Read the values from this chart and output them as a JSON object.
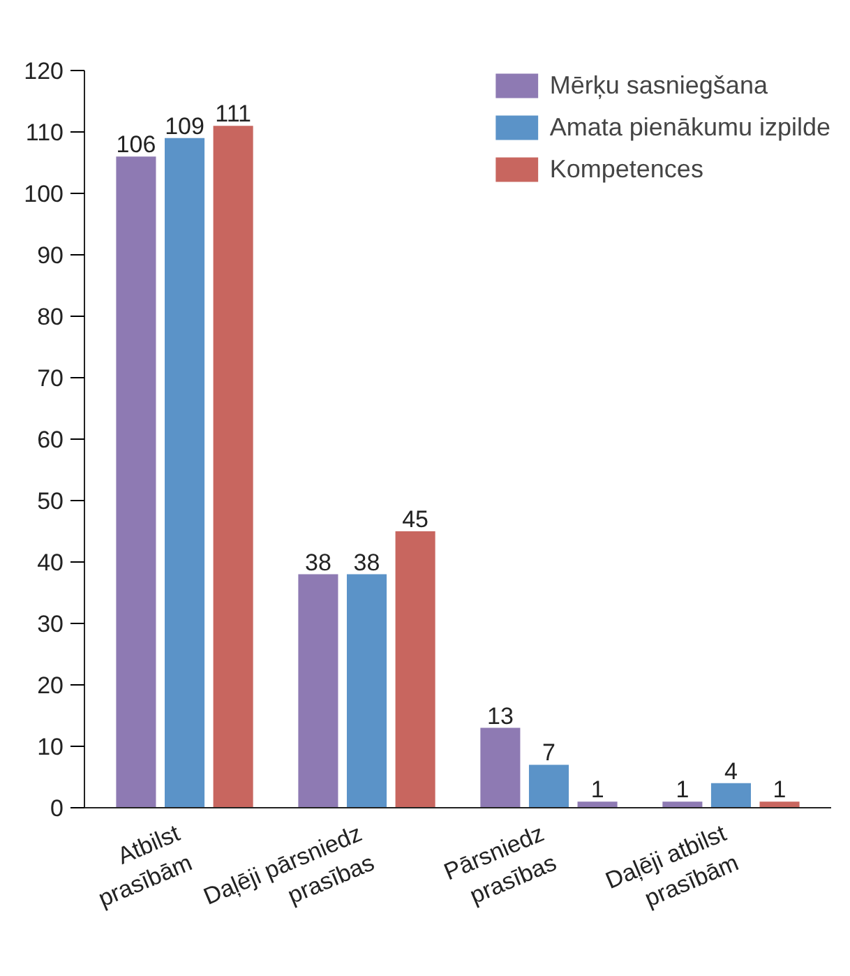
{
  "chart_data": {
    "type": "bar",
    "categories": [
      "Atbilst\nprasībām",
      "Daļēji pārsniedz\nprasības",
      "Pārsniedz\nprasības",
      "Daļēji atbilst\nprasībām"
    ],
    "series": [
      {
        "name": "Mērķu sasniegšana",
        "color": "#8e7ab3",
        "values": [
          106,
          38,
          13,
          1
        ]
      },
      {
        "name": "Amata pienākumu izpilde",
        "color": "#5b93c8",
        "values": [
          109,
          38,
          7,
          4
        ]
      },
      {
        "name": "Kompetences",
        "color": "#c8665f",
        "colors": [
          null,
          null,
          "#8e7ab3",
          null
        ],
        "values": [
          111,
          45,
          1,
          1
        ]
      }
    ],
    "ylim": [
      0,
      120
    ],
    "yticks": [
      0,
      10,
      20,
      30,
      40,
      50,
      60,
      70,
      80,
      90,
      100,
      110,
      120
    ],
    "data_labels": true,
    "legend": "top right",
    "grid": false
  }
}
